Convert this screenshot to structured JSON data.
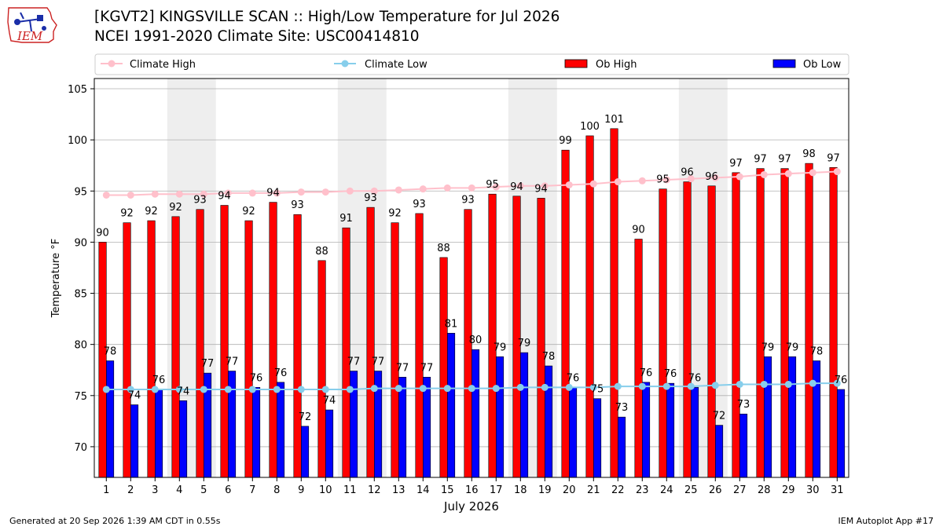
{
  "header": {
    "title_line1": "[KGVT2] KINGSVILLE SCAN :: High/Low Temperature for Jul 2026",
    "title_line2": "NCEI 1991-2020 Climate Site: USC00414810",
    "logo_text": "IEM"
  },
  "footer": {
    "generated": "Generated at 20 Sep 2026 1:39 AM CDT in 0.55s",
    "app": "IEM Autoplot App #17"
  },
  "colors": {
    "ob_high": "#ff0000",
    "ob_low": "#0000ff",
    "climate_high": "#ffc0cb",
    "climate_low": "#87ceeb",
    "weekend_shade": "#eeeeee",
    "grid": "#b0b0b0"
  },
  "chart_data": {
    "type": "bar",
    "xlabel": "July 2026",
    "ylabel": "Temperature °F",
    "ylim": [
      67,
      106
    ],
    "yticks": [
      70,
      75,
      80,
      85,
      90,
      95,
      100,
      105
    ],
    "grid": "horizontal",
    "legend_position": "top",
    "categories": [
      "1",
      "2",
      "3",
      "4",
      "5",
      "6",
      "7",
      "8",
      "9",
      "10",
      "11",
      "12",
      "13",
      "14",
      "15",
      "16",
      "17",
      "18",
      "19",
      "20",
      "21",
      "22",
      "23",
      "24",
      "25",
      "26",
      "27",
      "28",
      "29",
      "30",
      "31"
    ],
    "shaded_days": [
      4,
      5,
      11,
      12,
      18,
      19,
      25,
      26
    ],
    "series": [
      {
        "name": "Ob High",
        "type": "bar",
        "values": [
          90.0,
          91.9,
          92.1,
          92.5,
          93.2,
          93.6,
          92.1,
          93.9,
          92.7,
          88.2,
          91.4,
          93.4,
          91.9,
          92.8,
          88.5,
          93.2,
          94.7,
          94.5,
          94.3,
          99.0,
          100.4,
          101.1,
          90.3,
          95.2,
          95.9,
          95.5,
          96.8,
          97.2,
          97.2,
          97.7,
          97.3
        ],
        "labels": [
          "90",
          "92",
          "92",
          "92",
          "93",
          "94",
          "92",
          "94",
          "93",
          "88",
          "91",
          "93",
          "92",
          "93",
          "88",
          "93",
          "95",
          "94",
          "94",
          "99",
          "100",
          "101",
          "90",
          "95",
          "96",
          "96",
          "97",
          "97",
          "97",
          "98",
          "97"
        ]
      },
      {
        "name": "Ob Low",
        "type": "bar",
        "values": [
          78.4,
          74.1,
          75.6,
          74.5,
          77.2,
          77.4,
          75.8,
          76.3,
          72.0,
          73.6,
          77.4,
          77.4,
          76.8,
          76.8,
          81.1,
          79.5,
          78.8,
          79.2,
          77.9,
          75.8,
          74.7,
          72.9,
          76.3,
          76.2,
          75.8,
          72.1,
          73.2,
          78.8,
          78.8,
          78.4,
          75.6
        ],
        "labels": [
          "78",
          "74",
          "76",
          "74",
          "77",
          "77",
          "76",
          "76",
          "72",
          "74",
          "77",
          "77",
          "77",
          "77",
          "81",
          "80",
          "79",
          "79",
          "78",
          "76",
          "75",
          "73",
          "76",
          "76",
          "76",
          "72",
          "73",
          "79",
          "79",
          "78",
          "76"
        ]
      },
      {
        "name": "Climate High",
        "type": "line",
        "values": [
          94.6,
          94.6,
          94.7,
          94.7,
          94.7,
          94.8,
          94.8,
          94.8,
          94.9,
          94.9,
          95.0,
          95.0,
          95.1,
          95.2,
          95.3,
          95.3,
          95.4,
          95.5,
          95.5,
          95.6,
          95.7,
          95.9,
          96.0,
          96.1,
          96.2,
          96.3,
          96.4,
          96.6,
          96.7,
          96.8,
          96.9
        ]
      },
      {
        "name": "Climate Low",
        "type": "line",
        "values": [
          75.6,
          75.6,
          75.6,
          75.6,
          75.6,
          75.6,
          75.6,
          75.6,
          75.6,
          75.6,
          75.6,
          75.7,
          75.7,
          75.7,
          75.7,
          75.7,
          75.7,
          75.8,
          75.8,
          75.8,
          75.8,
          75.9,
          75.9,
          75.9,
          75.9,
          76.0,
          76.1,
          76.1,
          76.1,
          76.2,
          76.2
        ]
      }
    ]
  }
}
